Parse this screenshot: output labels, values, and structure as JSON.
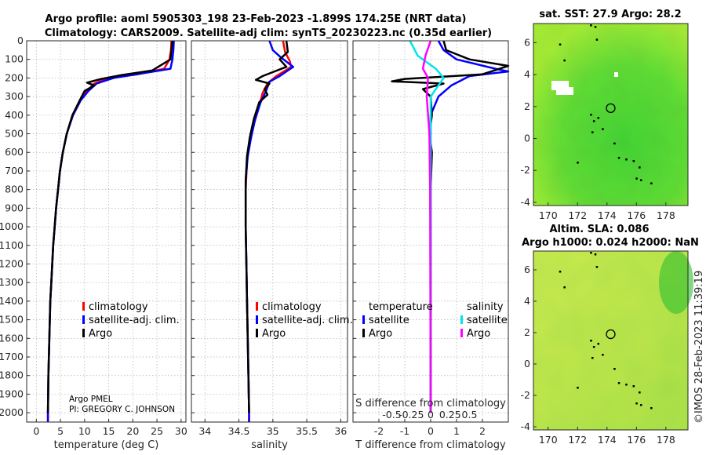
{
  "header": {
    "line1": "Argo profile: aoml 5905303_198 23-Feb-2023 -1.899S 174.25E (NRT data)",
    "line2": "Climatology: CARS2009. Satellite-adj clim: synTS_20230223.nc (0.35d earlier)"
  },
  "credit": {
    "org": "Argo PMEL",
    "pi": "PI: GREGORY C. JOHNSON"
  },
  "footer": "©IMOS 28-Feb-2023 11:39:19",
  "colors": {
    "clim": "#ff0000",
    "sat": "#0000ff",
    "argo": "#000000",
    "satT": "#0000ff",
    "satS": "#00e5ee",
    "argoS": "#ff00ff"
  },
  "chart_data": [
    {
      "type": "line",
      "id": "temperature",
      "xlabel": "temperature (deg C)",
      "ylabel": "",
      "xlim": [
        -2,
        31
      ],
      "ylim": [
        2050,
        0
      ],
      "xticks": [
        0,
        5,
        10,
        15,
        20,
        25,
        30
      ],
      "yticks": [
        0,
        100,
        200,
        300,
        400,
        500,
        600,
        700,
        800,
        900,
        1000,
        1100,
        1200,
        1300,
        1400,
        1500,
        1600,
        1700,
        1800,
        1900,
        2000
      ],
      "grid": true,
      "legend": [
        "climatology",
        "satellite-adj. clim.",
        "Argo"
      ],
      "series": [
        {
          "name": "climatology",
          "color": "#ff0000",
          "points": [
            [
              28.0,
              0
            ],
            [
              27.9,
              50
            ],
            [
              27.6,
              100
            ],
            [
              26.5,
              150
            ],
            [
              21.0,
              180
            ],
            [
              15.0,
              200
            ],
            [
              12.0,
              230
            ],
            [
              10.5,
              270
            ],
            [
              9.0,
              320
            ],
            [
              7.5,
              400
            ],
            [
              6.3,
              500
            ],
            [
              5.5,
              600
            ],
            [
              4.9,
              700
            ],
            [
              4.5,
              800
            ],
            [
              4.1,
              900
            ],
            [
              3.8,
              1000
            ],
            [
              3.5,
              1100
            ],
            [
              3.3,
              1200
            ],
            [
              3.1,
              1300
            ],
            [
              2.9,
              1400
            ],
            [
              2.8,
              1500
            ],
            [
              2.7,
              1600
            ],
            [
              2.6,
              1700
            ],
            [
              2.5,
              1800
            ],
            [
              2.45,
              1900
            ],
            [
              2.4,
              2000
            ],
            [
              2.4,
              2050
            ]
          ]
        },
        {
          "name": "satellite-adj. clim.",
          "color": "#0000ff",
          "points": [
            [
              28.5,
              0
            ],
            [
              28.4,
              50
            ],
            [
              28.2,
              100
            ],
            [
              27.8,
              150
            ],
            [
              22.0,
              175
            ],
            [
              16.0,
              200
            ],
            [
              12.5,
              230
            ],
            [
              10.8,
              270
            ],
            [
              9.2,
              320
            ],
            [
              7.6,
              400
            ],
            [
              6.3,
              500
            ],
            [
              5.5,
              600
            ],
            [
              4.9,
              700
            ],
            [
              4.5,
              800
            ],
            [
              4.1,
              900
            ],
            [
              3.8,
              1000
            ],
            [
              3.5,
              1100
            ],
            [
              3.3,
              1200
            ],
            [
              3.1,
              1300
            ],
            [
              2.9,
              1400
            ],
            [
              2.8,
              1500
            ],
            [
              2.7,
              1600
            ],
            [
              2.6,
              1700
            ],
            [
              2.5,
              1800
            ],
            [
              2.45,
              1900
            ],
            [
              2.4,
              2000
            ],
            [
              2.4,
              2050
            ]
          ]
        },
        {
          "name": "Argo",
          "color": "#000000",
          "points": [
            [
              28.2,
              0
            ],
            [
              28.0,
              50
            ],
            [
              27.8,
              100
            ],
            [
              24.0,
              160
            ],
            [
              17.5,
              185
            ],
            [
              13.5,
              205
            ],
            [
              10.5,
              225
            ],
            [
              12.0,
              240
            ],
            [
              10.0,
              270
            ],
            [
              9.0,
              320
            ],
            [
              7.5,
              400
            ],
            [
              6.3,
              500
            ],
            [
              5.5,
              600
            ],
            [
              4.9,
              700
            ],
            [
              4.5,
              800
            ],
            [
              4.1,
              900
            ],
            [
              3.8,
              1000
            ],
            [
              3.5,
              1100
            ],
            [
              3.3,
              1200
            ],
            [
              3.1,
              1300
            ],
            [
              2.9,
              1400
            ],
            [
              2.8,
              1500
            ],
            [
              2.7,
              1600
            ],
            [
              2.6,
              1700
            ],
            [
              2.5,
              1800
            ],
            [
              2.45,
              1900
            ],
            [
              2.4,
              2000
            ]
          ]
        }
      ]
    },
    {
      "type": "line",
      "id": "salinity",
      "xlabel": "salinity",
      "ylabel": "",
      "xlim": [
        33.8,
        36.1
      ],
      "ylim": [
        2050,
        0
      ],
      "xticks": [
        34,
        34.5,
        35,
        35.5,
        36
      ],
      "grid": true,
      "legend": [
        "climatology",
        "satellite-adj. clim.",
        "Argo"
      ],
      "series": [
        {
          "name": "climatology",
          "color": "#ff0000",
          "points": [
            [
              35.15,
              0
            ],
            [
              35.18,
              60
            ],
            [
              35.25,
              110
            ],
            [
              35.27,
              140
            ],
            [
              35.05,
              190
            ],
            [
              34.92,
              230
            ],
            [
              34.85,
              280
            ],
            [
              34.8,
              350
            ],
            [
              34.72,
              450
            ],
            [
              34.66,
              550
            ],
            [
              34.62,
              650
            ],
            [
              34.6,
              800
            ],
            [
              34.6,
              1000
            ],
            [
              34.61,
              1200
            ],
            [
              34.62,
              1400
            ],
            [
              34.63,
              1600
            ],
            [
              34.64,
              1800
            ],
            [
              34.65,
              2000
            ],
            [
              34.65,
              2050
            ]
          ]
        },
        {
          "name": "satellite-adj. clim.",
          "color": "#0000ff",
          "points": [
            [
              34.95,
              0
            ],
            [
              35.0,
              50
            ],
            [
              35.12,
              90
            ],
            [
              35.3,
              140
            ],
            [
              35.1,
              190
            ],
            [
              34.95,
              220
            ],
            [
              34.9,
              270
            ],
            [
              34.82,
              330
            ],
            [
              34.74,
              420
            ],
            [
              34.68,
              520
            ],
            [
              34.63,
              620
            ],
            [
              34.6,
              750
            ],
            [
              34.6,
              1000
            ],
            [
              34.61,
              1200
            ],
            [
              34.62,
              1400
            ],
            [
              34.63,
              1600
            ],
            [
              34.64,
              1800
            ],
            [
              34.65,
              2000
            ],
            [
              34.65,
              2050
            ]
          ]
        },
        {
          "name": "Argo",
          "color": "#000000",
          "points": [
            [
              35.2,
              0
            ],
            [
              35.22,
              60
            ],
            [
              35.1,
              100
            ],
            [
              35.2,
              140
            ],
            [
              34.85,
              190
            ],
            [
              34.75,
              210
            ],
            [
              34.95,
              230
            ],
            [
              34.88,
              260
            ],
            [
              34.92,
              290
            ],
            [
              34.8,
              330
            ],
            [
              34.72,
              420
            ],
            [
              34.66,
              520
            ],
            [
              34.62,
              620
            ],
            [
              34.6,
              750
            ],
            [
              34.6,
              1000
            ],
            [
              34.61,
              1200
            ],
            [
              34.62,
              1400
            ],
            [
              34.63,
              1600
            ],
            [
              34.64,
              1800
            ],
            [
              34.65,
              2000
            ]
          ]
        }
      ]
    },
    {
      "type": "line",
      "id": "difference",
      "xlabel": "T difference from climatology",
      "xlabel_top": "S difference from climatology",
      "xlim": [
        -3,
        3
      ],
      "ylim": [
        2050,
        0
      ],
      "xticks": [
        -2,
        -1,
        0,
        1,
        2
      ],
      "xticks_S": [
        "-0.5",
        "-0.25",
        "0",
        "0.25",
        "0.5"
      ],
      "grid": true,
      "legend_T_title": "temperature",
      "legend_S_title": "salinity",
      "legend": [
        "satellite",
        "Argo"
      ],
      "series": [
        {
          "name": "temperature satellite",
          "color": "#0000ff",
          "points": [
            [
              0.3,
              0
            ],
            [
              0.5,
              50
            ],
            [
              1.0,
              100
            ],
            [
              2.5,
              150
            ],
            [
              3.0,
              165
            ],
            [
              1.5,
              190
            ],
            [
              0.8,
              240
            ],
            [
              0.3,
              300
            ],
            [
              0.0,
              400
            ],
            [
              0.0,
              2000
            ]
          ]
        },
        {
          "name": "temperature Argo",
          "color": "#000000",
          "points": [
            [
              0.5,
              0
            ],
            [
              0.6,
              50
            ],
            [
              1.5,
              100
            ],
            [
              3.0,
              135
            ],
            [
              2.0,
              180
            ],
            [
              -1.0,
              205
            ],
            [
              -1.5,
              218
            ],
            [
              0.5,
              230
            ],
            [
              -0.3,
              260
            ],
            [
              0.0,
              300
            ],
            [
              0.05,
              400
            ],
            [
              -0.05,
              500
            ],
            [
              0.05,
              600
            ],
            [
              0.0,
              800
            ],
            [
              0.0,
              2000
            ]
          ]
        },
        {
          "name": "salinity satellite",
          "color": "#00e5ee",
          "points": [
            [
              -0.8,
              0
            ],
            [
              -0.5,
              80
            ],
            [
              0.2,
              150
            ],
            [
              0.5,
              200
            ],
            [
              0.0,
              300
            ],
            [
              0.0,
              2000
            ]
          ]
        },
        {
          "name": "salinity Argo",
          "color": "#ff00ff",
          "points": [
            [
              0.0,
              0
            ],
            [
              -0.2,
              80
            ],
            [
              -0.3,
              150
            ],
            [
              -0.1,
              200
            ],
            [
              -0.15,
              300
            ],
            [
              -0.05,
              500
            ],
            [
              -0.02,
              800
            ],
            [
              0.0,
              2000
            ]
          ]
        }
      ]
    },
    {
      "type": "heatmap",
      "id": "sst-map",
      "title": "sat. SST: 27.9 Argo: 28.2",
      "xlim": [
        169,
        179.5
      ],
      "ylim": [
        -4.2,
        7.2
      ],
      "xticks": [
        170,
        172,
        174,
        176,
        178
      ],
      "yticks": [
        -4,
        -2,
        0,
        2,
        4,
        6
      ],
      "marker": [
        174.25,
        -1.899
      ]
    },
    {
      "type": "heatmap",
      "id": "sla-map",
      "title": "Altim. SLA: 0.086",
      "subtitle": "Argo h1000: 0.024 h2000: NaN",
      "xlim": [
        169,
        179.5
      ],
      "ylim": [
        -4.2,
        7.2
      ],
      "xticks": [
        170,
        172,
        174,
        176,
        178
      ],
      "yticks": [
        -4,
        -2,
        0,
        2,
        4,
        6
      ],
      "marker": [
        174.25,
        -1.899
      ]
    }
  ]
}
